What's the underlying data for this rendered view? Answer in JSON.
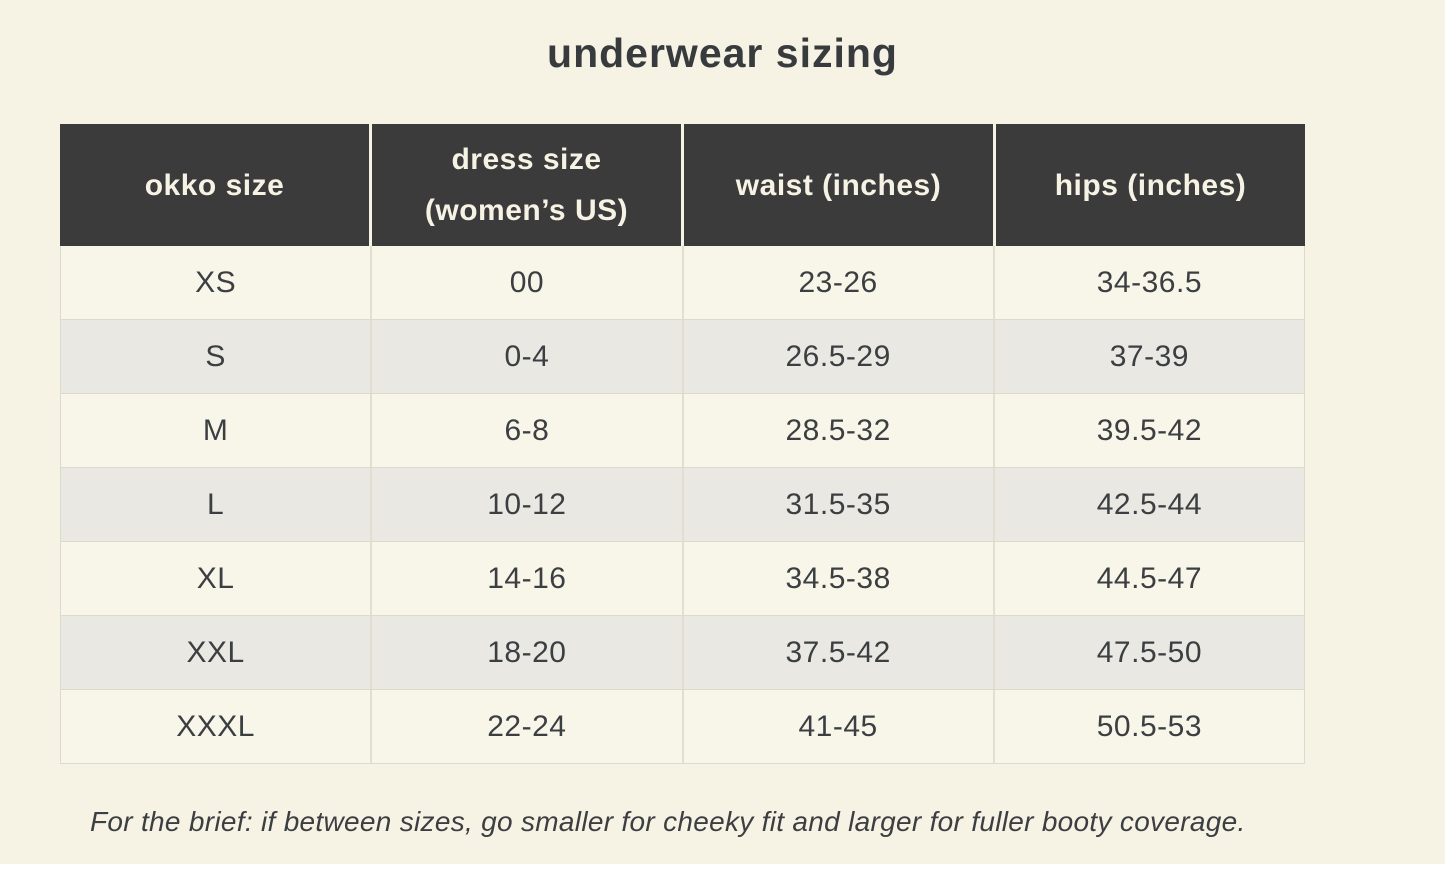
{
  "page": {
    "title": "underwear sizing",
    "footnote": "For the brief: if between sizes, go smaller for cheeky fit and larger for fuller booty coverage."
  },
  "colors": {
    "page_background": "#f6f2e4",
    "header_background": "#3b3b3b",
    "header_text": "#f6f2e4",
    "row_cream": "#f8f5e9",
    "row_gray": "#e9e8e3",
    "body_text": "#3c3f42",
    "border": "#dcd9cd"
  },
  "table": {
    "headers": {
      "okko_size": "okko size",
      "dress_size": "dress size (women’s US)",
      "waist": "waist (inches)",
      "hips": "hips (inches)"
    },
    "rows": [
      {
        "size": "XS",
        "dress": "00",
        "waist": "23-26",
        "hips": "34-36.5"
      },
      {
        "size": "S",
        "dress": "0-4",
        "waist": "26.5-29",
        "hips": "37-39"
      },
      {
        "size": "M",
        "dress": "6-8",
        "waist": "28.5-32",
        "hips": "39.5-42"
      },
      {
        "size": "L",
        "dress": "10-12",
        "waist": "31.5-35",
        "hips": "42.5-44"
      },
      {
        "size": "XL",
        "dress": "14-16",
        "waist": "34.5-38",
        "hips": "44.5-47"
      },
      {
        "size": "XXL",
        "dress": "18-20",
        "waist": "37.5-42",
        "hips": "47.5-50"
      },
      {
        "size": "XXXL",
        "dress": "22-24",
        "waist": "41-45",
        "hips": "50.5-53"
      }
    ]
  }
}
